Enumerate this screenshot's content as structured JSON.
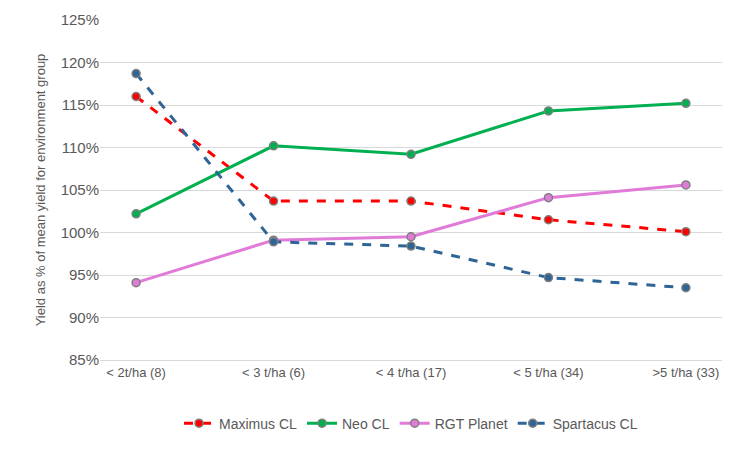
{
  "chart_data": {
    "type": "line",
    "y_label": "Yield as % of mean yield for environment group",
    "categories": [
      "< 2t/ha (8)",
      "< 3 t/ha (6)",
      "< 4 t/ha (17)",
      "< 5 t/ha (34)",
      ">5 t/ha (33)"
    ],
    "series": [
      {
        "name": "Maximus CL",
        "color": "#ff0000",
        "line_style": "dash",
        "marker": "circle",
        "values": [
          116.0,
          103.7,
          103.7,
          101.5,
          100.1
        ]
      },
      {
        "name": "Neo CL",
        "color": "#00b050",
        "line_style": "solid",
        "marker": "circle",
        "values": [
          102.2,
          110.2,
          109.2,
          114.3,
          115.2
        ]
      },
      {
        "name": "RGT Planet",
        "color": "#e07bd8",
        "line_style": "solid",
        "marker": "circle",
        "values": [
          94.1,
          99.1,
          99.5,
          104.1,
          105.6
        ]
      },
      {
        "name": "Spartacus CL",
        "color": "#2e6496",
        "line_style": "dash",
        "marker": "circle",
        "values": [
          118.7,
          98.9,
          98.4,
          94.7,
          93.5
        ]
      }
    ],
    "ylim": [
      85,
      125
    ],
    "yticks": [
      {
        "value": 85,
        "label": "85%"
      },
      {
        "value": 90,
        "label": "90%"
      },
      {
        "value": 95,
        "label": "95%"
      },
      {
        "value": 100,
        "label": "100%"
      },
      {
        "value": 105,
        "label": "105%"
      },
      {
        "value": 110,
        "label": "110%"
      },
      {
        "value": 115,
        "label": "115%"
      },
      {
        "value": 120,
        "label": "120%"
      },
      {
        "value": 125,
        "label": "125%"
      }
    ],
    "grid": true,
    "legend": "bottom"
  }
}
